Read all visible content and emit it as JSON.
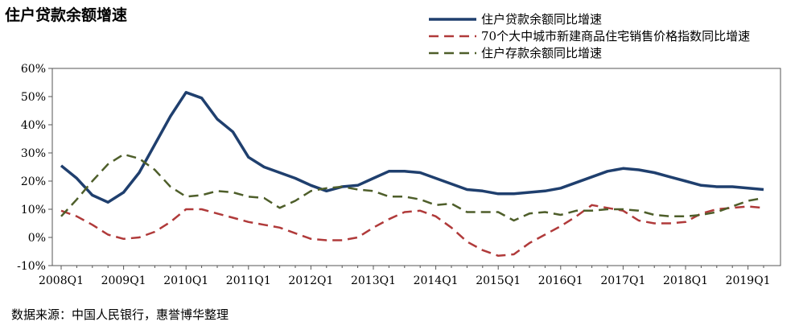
{
  "chart_data": {
    "type": "line",
    "title": "住户贷款余额增速",
    "source": "数据来源：中国人民银行，惠誉博华整理",
    "xlabel": "",
    "ylabel": "",
    "x_tick_labels": [
      "2008Q1",
      "2009Q1",
      "2010Q1",
      "2011Q1",
      "2012Q1",
      "2013Q1",
      "2014Q1",
      "2015Q1",
      "2016Q1",
      "2017Q1",
      "2018Q1",
      "2019Q1"
    ],
    "y_tick_labels": [
      "-10%",
      "0%",
      "10%",
      "20%",
      "30%",
      "40%",
      "50%",
      "60%"
    ],
    "ylim": [
      -10,
      60
    ],
    "y_unit": "%",
    "x_period_start": "2008Q1",
    "x_periods": 46,
    "grid": false,
    "legend_position": "top-right",
    "series": [
      {
        "name": "住户贷款余额同比增速",
        "color": "#1f3f6e",
        "style": "solid",
        "values": [
          25.5,
          21,
          15,
          12.5,
          16,
          23,
          33,
          43,
          51.5,
          49.5,
          42,
          37.5,
          28.5,
          25,
          23,
          21,
          18.5,
          16.5,
          18,
          18.5,
          21,
          23.5,
          23.5,
          23,
          21,
          19,
          17,
          16.5,
          15.5,
          15.5,
          16,
          16.5,
          17.5,
          19.5,
          21.5,
          23.5,
          24.5,
          24,
          23,
          21.5,
          20,
          18.5,
          18,
          18,
          17.5,
          17
        ]
      },
      {
        "name": "70个大中城市新建商品住宅销售价格指数同比增速",
        "color": "#b03a3a",
        "style": "dashed",
        "values": [
          9.5,
          7.5,
          4.5,
          1,
          -0.5,
          0,
          2,
          5.5,
          10,
          10,
          8.5,
          7,
          5.5,
          4.5,
          3.5,
          1.5,
          -0.5,
          -1,
          -1,
          0,
          3.5,
          6.5,
          9,
          9.5,
          7.5,
          3.5,
          -1.5,
          -4.5,
          -6.5,
          -6,
          -2,
          1,
          4,
          7.5,
          11.5,
          10.5,
          9.5,
          6,
          5,
          5,
          5.5,
          8.5,
          10,
          10.5,
          11,
          10.5
        ]
      },
      {
        "name": "住户存款余额同比增速",
        "color": "#4e5e2a",
        "style": "dashed",
        "values": [
          7.5,
          13.5,
          20,
          26,
          29.5,
          28,
          24,
          18,
          14.5,
          15,
          16.5,
          16,
          14.5,
          14,
          10.5,
          13,
          16.5,
          17.5,
          18,
          17,
          16.5,
          14.5,
          14.5,
          13.5,
          11.5,
          12,
          9,
          9,
          9,
          6,
          8.5,
          9,
          8,
          9.5,
          9.5,
          10,
          10,
          9.5,
          8,
          7.5,
          7.5,
          8,
          9,
          11,
          13,
          14
        ]
      }
    ]
  }
}
